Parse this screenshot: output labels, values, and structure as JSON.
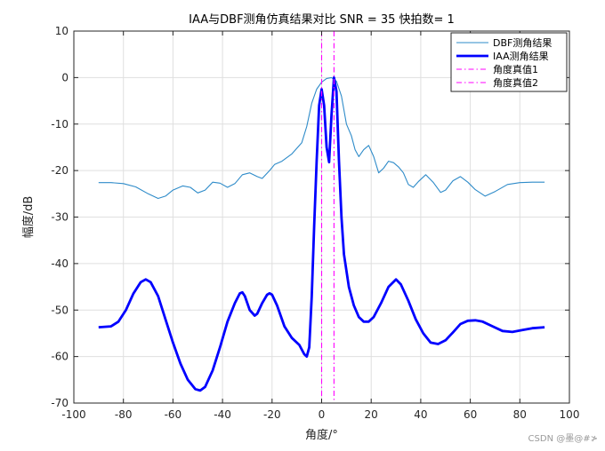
{
  "chart_data": {
    "type": "line",
    "title": "IAA与DBF测角仿真结果对比 SNR = 35  快拍数= 1",
    "xlabel": "角度/°",
    "ylabel": "幅度/dB",
    "xlim": [
      -100,
      100
    ],
    "ylim": [
      -70,
      10
    ],
    "xticks": [
      -100,
      -80,
      -60,
      -40,
      -20,
      0,
      20,
      40,
      60,
      80,
      100
    ],
    "yticks": [
      10,
      0,
      -10,
      -20,
      -30,
      -40,
      -50,
      -60,
      -70
    ],
    "grid": true,
    "legend_position": "top-right",
    "series": [
      {
        "name": "DBF测角结果",
        "color": "#2e8bc9",
        "style": "solid",
        "width": "thin",
        "points": [
          [
            -90,
            -22.6
          ],
          [
            -85,
            -22.6
          ],
          [
            -80,
            -22.8
          ],
          [
            -75,
            -23.5
          ],
          [
            -70,
            -25
          ],
          [
            -66,
            -26
          ],
          [
            -63,
            -25.5
          ],
          [
            -60,
            -24.2
          ],
          [
            -56,
            -23.3
          ],
          [
            -53,
            -23.6
          ],
          [
            -50,
            -24.8
          ],
          [
            -47,
            -24.2
          ],
          [
            -44,
            -22.5
          ],
          [
            -41,
            -22.7
          ],
          [
            -38,
            -23.6
          ],
          [
            -35,
            -22.8
          ],
          [
            -32,
            -20.9
          ],
          [
            -29,
            -20.5
          ],
          [
            -26,
            -21.3
          ],
          [
            -24,
            -21.7
          ],
          [
            -21,
            -20
          ],
          [
            -19,
            -18.7
          ],
          [
            -16,
            -18
          ],
          [
            -12,
            -16.4
          ],
          [
            -8,
            -14
          ],
          [
            -6,
            -10.5
          ],
          [
            -4,
            -5.5
          ],
          [
            -2,
            -2.5
          ],
          [
            0,
            -1
          ],
          [
            2,
            -0.2
          ],
          [
            4,
            0
          ],
          [
            6,
            -0.8
          ],
          [
            8,
            -4
          ],
          [
            10,
            -10
          ],
          [
            12,
            -12.5
          ],
          [
            13.5,
            -15.5
          ],
          [
            15,
            -17
          ],
          [
            17,
            -15.5
          ],
          [
            19,
            -14.6
          ],
          [
            21,
            -17
          ],
          [
            23,
            -20.5
          ],
          [
            25,
            -19.5
          ],
          [
            27,
            -18
          ],
          [
            29,
            -18.3
          ],
          [
            31,
            -19.2
          ],
          [
            33,
            -20.5
          ],
          [
            35,
            -23
          ],
          [
            37,
            -23.6
          ],
          [
            39,
            -22.4
          ],
          [
            42,
            -20.9
          ],
          [
            45,
            -22.5
          ],
          [
            48,
            -24.7
          ],
          [
            50,
            -24.2
          ],
          [
            53,
            -22.2
          ],
          [
            56,
            -21.3
          ],
          [
            59,
            -22.5
          ],
          [
            62,
            -24.1
          ],
          [
            66,
            -25.5
          ],
          [
            70,
            -24.5
          ],
          [
            75,
            -23
          ],
          [
            80,
            -22.6
          ],
          [
            85,
            -22.5
          ],
          [
            90,
            -22.5
          ]
        ]
      },
      {
        "name": "IAA测角结果",
        "color": "#0000ff",
        "style": "solid",
        "width": "thick",
        "points": [
          [
            -90,
            -53.7
          ],
          [
            -85,
            -53.5
          ],
          [
            -82,
            -52.5
          ],
          [
            -79,
            -50
          ],
          [
            -76,
            -46.5
          ],
          [
            -73,
            -44
          ],
          [
            -71,
            -43.4
          ],
          [
            -69,
            -44
          ],
          [
            -66,
            -47
          ],
          [
            -63,
            -52
          ],
          [
            -60,
            -57
          ],
          [
            -57,
            -61.5
          ],
          [
            -54,
            -65
          ],
          [
            -51,
            -67
          ],
          [
            -49,
            -67.3
          ],
          [
            -47,
            -66.5
          ],
          [
            -44,
            -63
          ],
          [
            -41,
            -58
          ],
          [
            -38,
            -52.5
          ],
          [
            -35,
            -48.5
          ],
          [
            -33,
            -46.4
          ],
          [
            -32,
            -46.2
          ],
          [
            -31,
            -47
          ],
          [
            -29,
            -50
          ],
          [
            -27,
            -51.2
          ],
          [
            -26,
            -50.8
          ],
          [
            -24,
            -48.5
          ],
          [
            -22,
            -46.7
          ],
          [
            -21,
            -46.4
          ],
          [
            -20,
            -46.7
          ],
          [
            -18,
            -49
          ],
          [
            -15,
            -53.5
          ],
          [
            -12,
            -56
          ],
          [
            -9,
            -57.5
          ],
          [
            -7,
            -59.5
          ],
          [
            -6,
            -60
          ],
          [
            -5,
            -58
          ],
          [
            -4,
            -47
          ],
          [
            -3,
            -32
          ],
          [
            -2,
            -18
          ],
          [
            -1,
            -6
          ],
          [
            0,
            -2.5
          ],
          [
            1,
            -6
          ],
          [
            2,
            -15
          ],
          [
            3,
            -18.2
          ],
          [
            4,
            -8
          ],
          [
            5,
            0
          ],
          [
            6,
            -3
          ],
          [
            7,
            -18
          ],
          [
            8,
            -30
          ],
          [
            9,
            -38
          ],
          [
            11,
            -45
          ],
          [
            13,
            -49
          ],
          [
            15,
            -51.5
          ],
          [
            17,
            -52.5
          ],
          [
            19,
            -52.5
          ],
          [
            21,
            -51.5
          ],
          [
            24,
            -48.5
          ],
          [
            27,
            -45
          ],
          [
            30,
            -43.4
          ],
          [
            32,
            -44.5
          ],
          [
            35,
            -48
          ],
          [
            38,
            -52
          ],
          [
            41,
            -55
          ],
          [
            44,
            -57
          ],
          [
            47,
            -57.3
          ],
          [
            50,
            -56.5
          ],
          [
            53,
            -54.8
          ],
          [
            56,
            -53
          ],
          [
            59,
            -52.3
          ],
          [
            62,
            -52.2
          ],
          [
            65,
            -52.5
          ],
          [
            69,
            -53.5
          ],
          [
            73,
            -54.5
          ],
          [
            77,
            -54.7
          ],
          [
            81,
            -54.3
          ],
          [
            85,
            -53.9
          ],
          [
            90,
            -53.7
          ]
        ]
      },
      {
        "name": "角度真值1",
        "color": "#ff00ff",
        "style": "dashdot",
        "width": "thin",
        "vertical_x": 0
      },
      {
        "name": "角度真值2",
        "color": "#ff00ff",
        "style": "dashdot",
        "width": "thin",
        "vertical_x": 5
      }
    ]
  },
  "watermark": "CSDN @墨@#≯"
}
